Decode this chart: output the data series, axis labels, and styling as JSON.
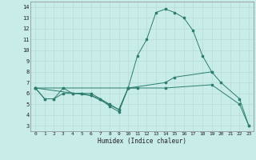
{
  "line1_x": [
    0,
    1,
    2,
    3,
    4,
    5,
    6,
    7,
    8,
    9,
    10,
    11,
    12,
    13,
    14,
    15,
    16,
    17,
    18,
    19
  ],
  "line1_y": [
    6.5,
    5.5,
    5.5,
    6.5,
    6.0,
    6.0,
    6.0,
    5.5,
    5.0,
    4.5,
    6.5,
    9.5,
    11.0,
    13.5,
    13.8,
    13.5,
    13.0,
    11.8,
    9.5,
    8.0
  ],
  "line2_x": [
    0,
    1,
    2,
    3,
    4,
    5,
    6,
    7,
    8,
    9,
    10,
    11
  ],
  "line2_y": [
    6.5,
    5.5,
    5.5,
    6.0,
    6.0,
    6.0,
    5.8,
    5.5,
    4.8,
    4.3,
    6.5,
    6.5
  ],
  "line3_x": [
    0,
    6,
    9,
    10,
    14,
    15,
    19,
    20,
    22,
    23
  ],
  "line3_y": [
    6.5,
    5.8,
    4.5,
    6.5,
    7.0,
    7.5,
    8.0,
    7.0,
    5.5,
    3.0
  ],
  "line4_x": [
    0,
    10,
    14,
    19,
    22,
    23
  ],
  "line4_y": [
    6.5,
    6.5,
    6.5,
    6.8,
    5.0,
    3.0
  ],
  "color": "#2d7d6e",
  "bg_color": "#c8ece8",
  "grid_color": "#b8dcd8",
  "xlabel": "Humidex (Indice chaleur)",
  "xlim": [
    -0.5,
    23.5
  ],
  "ylim": [
    2.5,
    14.5
  ],
  "xticks": [
    0,
    1,
    2,
    3,
    4,
    5,
    6,
    7,
    8,
    9,
    10,
    11,
    12,
    13,
    14,
    15,
    16,
    17,
    18,
    19,
    20,
    21,
    22,
    23
  ],
  "yticks": [
    3,
    4,
    5,
    6,
    7,
    8,
    9,
    10,
    11,
    12,
    13,
    14
  ]
}
